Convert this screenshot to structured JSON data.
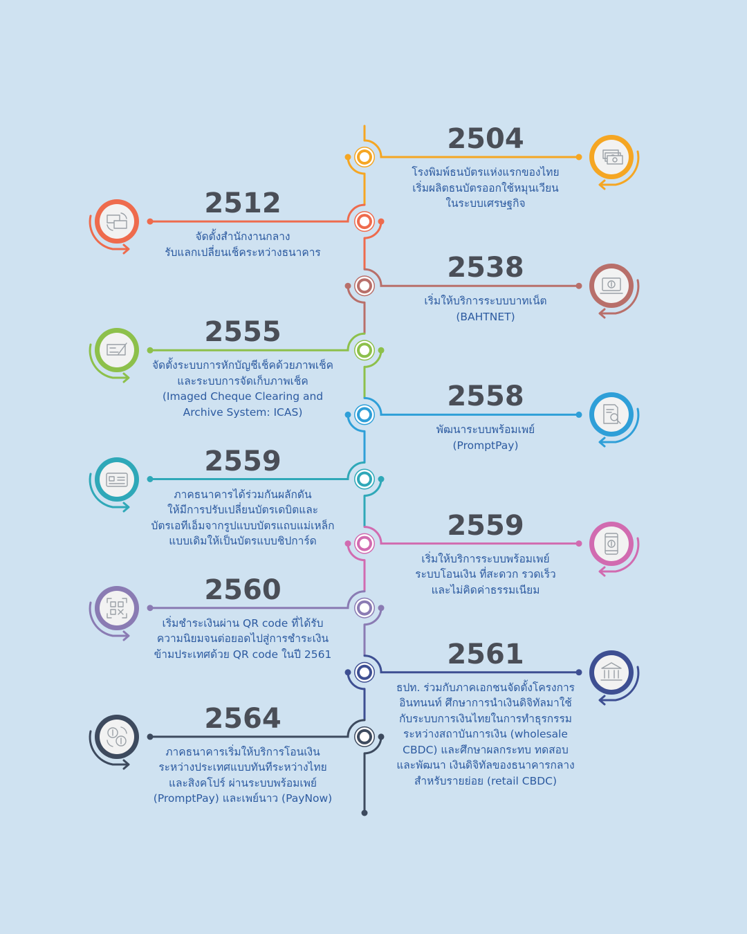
{
  "timeline": [
    {
      "year": "2504",
      "side": "right",
      "color": "#f5a623",
      "icon": "banknotes-icon",
      "lines": [
        "โรงพิมพ์ธนบัตรแห่งแรกของไทย",
        "เริ่มผลิตธนบัตรออกใช้หมุนเวียน",
        "ในระบบเศรษฐกิจ"
      ]
    },
    {
      "year": "2512",
      "side": "left",
      "color": "#ee6b4d",
      "icon": "cheque-exchange-icon",
      "lines": [
        "จัดตั้งสำนักงานกลาง",
        "รับแลกเปลี่ยนเช็คระหว่างธนาคาร"
      ]
    },
    {
      "year": "2538",
      "side": "right",
      "color": "#b86f6a",
      "icon": "computer-baht-icon",
      "lines": [
        "เริ่มให้บริการระบบบาทเน็ต",
        "(BAHTNET)"
      ]
    },
    {
      "year": "2555",
      "side": "left",
      "color": "#8dc04b",
      "icon": "cheque-pen-icon",
      "lines": [
        "จัดตั้งระบบการหักบัญชีเช็คด้วยภาพเช็ค",
        "และระบบการจัดเก็บภาพเช็ค",
        "(Imaged Cheque Clearing and",
        "Archive System: ICAS)"
      ]
    },
    {
      "year": "2558",
      "side": "right",
      "color": "#2f9fd8",
      "icon": "document-search-icon",
      "lines": [
        "พัฒนาระบบพร้อมเพย์",
        "(PromptPay)"
      ]
    },
    {
      "year": "2559",
      "side": "left",
      "color": "#2fa8b8",
      "icon": "chip-card-icon",
      "lines": [
        "ภาคธนาคารได้ร่วมกันผลักดัน",
        "ให้มีการปรับเปลี่ยนบัตรเดบิตและ",
        "บัตรเอทีเอ็มจากรูปแบบบัตรแถบแม่เหล็ก",
        "แบบเดิมให้เป็นบัตรแบบชิปการ์ด"
      ]
    },
    {
      "year": "2559",
      "side": "right",
      "color": "#d16bb0",
      "icon": "mobile-payment-icon",
      "lines": [
        "เริ่มให้บริการระบบพร้อมเพย์",
        "ระบบโอนเงิน ที่สะดวก รวดเร็ว",
        "และไม่คิดค่าธรรมเนียม"
      ]
    },
    {
      "year": "2560",
      "side": "left",
      "color": "#8a7bb3",
      "icon": "qr-code-icon",
      "lines": [
        "เริ่มชำระเงินผ่าน QR code ที่ได้รับ",
        "ความนิยมจนต่อยอดไปสู่การชำระเงิน",
        "ข้ามประเทศด้วย QR code ในปี 2561"
      ]
    },
    {
      "year": "2561",
      "side": "right",
      "color": "#3e4f92",
      "icon": "bank-building-icon",
      "lines": [
        "ธปท. ร่วมกับภาคเอกชนจัดตั้งโครงการ",
        "อินทนนท์ ศึกษาการนำเงินดิจิทัลมาใช้",
        "กับระบบการเงินไทยในการทำธุรกรรม",
        "ระหว่างสถาบันการเงิน (wholesale",
        "CBDC) และศึกษาผลกระทบ ทดสอบ",
        "และพัฒนา เงินดิจิทัลของธนาคารกลาง",
        "สำหรับรายย่อย (retail CBDC)"
      ]
    },
    {
      "year": "2564",
      "side": "left",
      "color": "#3d4a5e",
      "icon": "currency-exchange-icon",
      "lines": [
        "ภาคธนาคารเริ่มให้บริการโอนเงิน",
        "ระหว่างประเทศแบบทันทีระหว่างไทย",
        "และสิงคโปร์ ผ่านระบบพร้อมเพย์",
        "(PromptPay) และเพย์นาว (PayNow)"
      ]
    }
  ],
  "styles": {
    "spine_start_color": "#f5a623",
    "year_color": "#4a4e57",
    "text_color": "#2c5aa0",
    "background": "#cfe2f1"
  }
}
